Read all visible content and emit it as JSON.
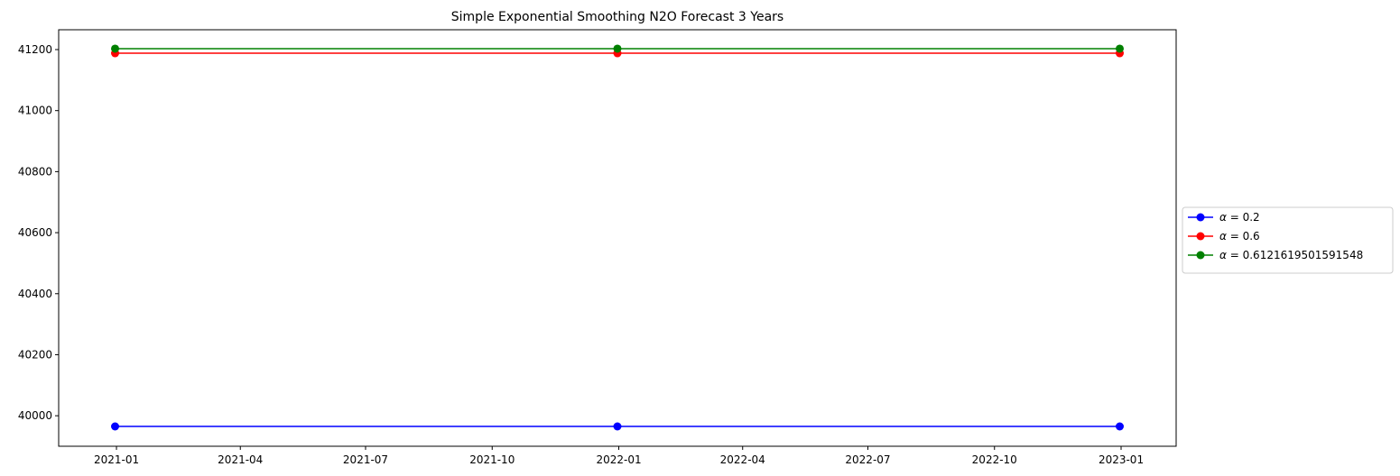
{
  "chart_data": {
    "type": "line",
    "title": "Simple Exponential Smoothing N2O Forecast 3 Years",
    "xlabel": "",
    "ylabel": "",
    "x": [
      "2020-12-31",
      "2021-12-31",
      "2022-12-31"
    ],
    "xlim": [
      "2020-11-20",
      "2023-02-10"
    ],
    "ylim": [
      39900,
      41265
    ],
    "x_ticks": [
      "2021-01",
      "2021-04",
      "2021-07",
      "2021-10",
      "2022-01",
      "2022-04",
      "2022-07",
      "2022-10",
      "2023-01"
    ],
    "y_ticks": [
      40000,
      40200,
      40400,
      40600,
      40800,
      41000,
      41200
    ],
    "y_tick_labels": [
      "40000",
      "40200",
      "40400",
      "40600",
      "40800",
      "41000",
      "41200"
    ],
    "grid": false,
    "legend_position": "center-right-outside",
    "series": [
      {
        "name": "α = 0.2",
        "name_prefix": "α",
        "name_suffix": " = 0.2",
        "color": "#0000ff",
        "marker": "circle",
        "values": [
          39965,
          39965,
          39965
        ]
      },
      {
        "name": "α = 0.6",
        "name_prefix": "α",
        "name_suffix": " = 0.6",
        "color": "#ff0000",
        "marker": "circle",
        "values": [
          41188,
          41188,
          41188
        ]
      },
      {
        "name": "α = 0.6121619501591548",
        "name_prefix": "α",
        "name_suffix": " = 0.6121619501591548",
        "color": "#008000",
        "marker": "circle",
        "values": [
          41203,
          41203,
          41203
        ]
      }
    ]
  }
}
